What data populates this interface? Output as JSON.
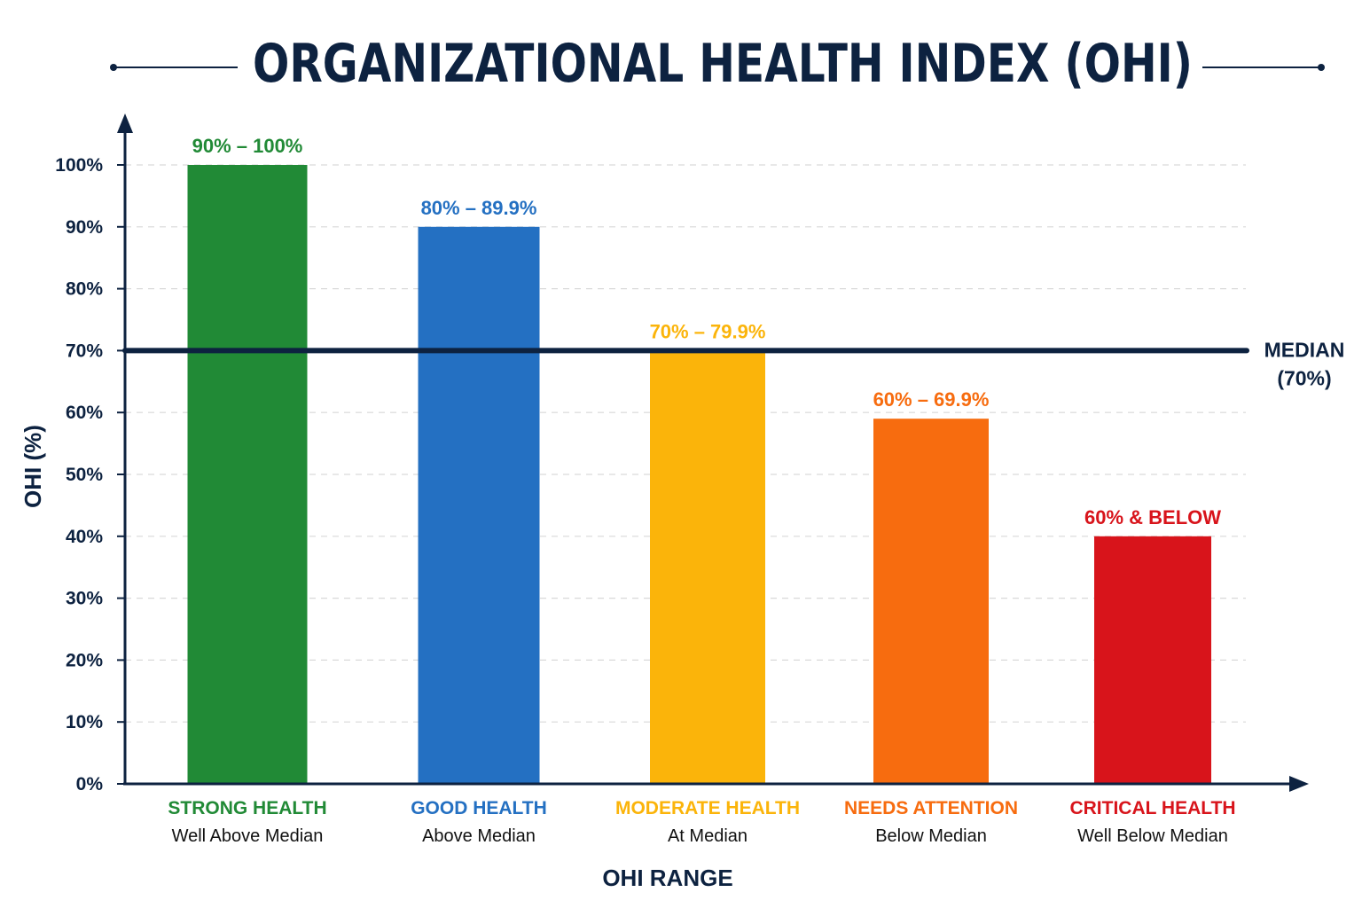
{
  "title": "ORGANIZATIONAL HEALTH INDEX (OHI)",
  "chart_data": {
    "type": "bar",
    "ylabel": "OHI (%)",
    "xlabel": "OHI RANGE",
    "ylim": [
      0,
      100
    ],
    "yticks": [
      0,
      10,
      20,
      30,
      40,
      50,
      60,
      70,
      80,
      90,
      100
    ],
    "ytick_labels": [
      "0%",
      "10%",
      "20%",
      "30%",
      "40%",
      "50%",
      "60%",
      "70%",
      "80%",
      "90%",
      "100%"
    ],
    "grid": true,
    "categories": [
      "STRONG HEALTH",
      "GOOD HEALTH",
      "MODERATE HEALTH",
      "NEEDS ATTENTION",
      "CRITICAL HEALTH"
    ],
    "subtitles": [
      "Well Above Median",
      "Above Median",
      "At Median",
      "Below Median",
      "Well Below Median"
    ],
    "values": [
      100,
      90,
      70,
      59,
      40
    ],
    "range_labels": [
      "90% – 100%",
      "80% – 89.9%",
      "70% – 79.9%",
      "60% – 69.9%",
      "60% & BELOW"
    ],
    "colors": [
      "#218a36",
      "#2470c2",
      "#fbb40a",
      "#f76c0f",
      "#d8141b"
    ],
    "median": {
      "value": 70,
      "label_line1": "MEDIAN",
      "label_line2": "(70%)",
      "color": "#0d2240"
    }
  }
}
